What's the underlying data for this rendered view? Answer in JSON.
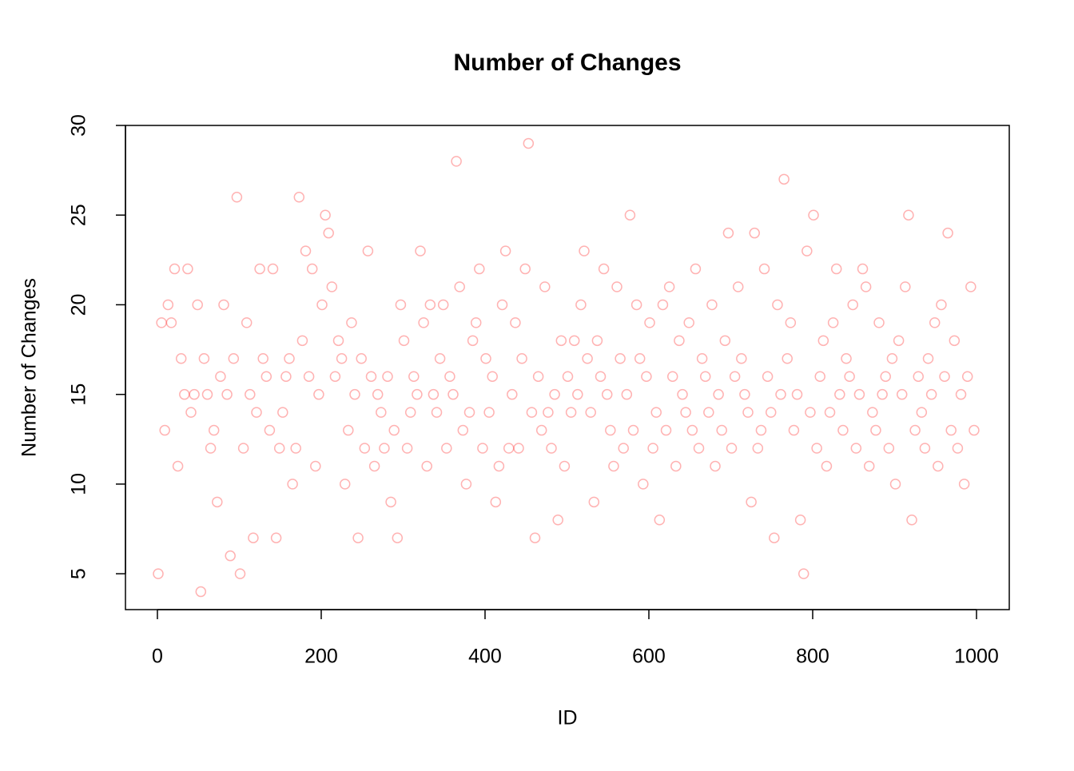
{
  "chart_data": {
    "type": "scatter",
    "title": "Number of Changes",
    "x_label": "ID",
    "y_label": "Number of Changes",
    "color": "rgba(255,0,0,0.3)",
    "xlim": [
      -39,
      1040
    ],
    "ylim": [
      3,
      30
    ],
    "xticks": [
      0,
      200,
      400,
      600,
      800,
      1000
    ],
    "yticks": [
      5,
      10,
      15,
      20,
      25,
      30
    ],
    "x": [
      1,
      5,
      9,
      13,
      17,
      21,
      25,
      29,
      33,
      37,
      41,
      45,
      49,
      53,
      57,
      61,
      65,
      69,
      73,
      77,
      81,
      85,
      89,
      93,
      97,
      101,
      105,
      109,
      113,
      117,
      121,
      125,
      129,
      133,
      137,
      141,
      145,
      149,
      153,
      157,
      161,
      165,
      169,
      173,
      177,
      181,
      185,
      189,
      193,
      197,
      201,
      205,
      209,
      213,
      217,
      221,
      225,
      229,
      233,
      237,
      241,
      245,
      249,
      253,
      257,
      261,
      265,
      269,
      273,
      277,
      281,
      285,
      289,
      293,
      297,
      301,
      305,
      309,
      313,
      317,
      321,
      325,
      329,
      333,
      337,
      341,
      345,
      349,
      353,
      357,
      361,
      365,
      369,
      373,
      377,
      381,
      385,
      389,
      393,
      397,
      401,
      405,
      409,
      413,
      417,
      421,
      425,
      429,
      433,
      437,
      441,
      445,
      449,
      453,
      457,
      461,
      465,
      469,
      473,
      477,
      481,
      485,
      489,
      493,
      497,
      501,
      505,
      509,
      513,
      517,
      521,
      525,
      529,
      533,
      537,
      541,
      545,
      549,
      553,
      557,
      561,
      565,
      569,
      573,
      577,
      581,
      585,
      589,
      593,
      597,
      601,
      605,
      609,
      613,
      617,
      621,
      625,
      629,
      633,
      637,
      641,
      645,
      649,
      653,
      657,
      661,
      665,
      669,
      673,
      677,
      681,
      685,
      689,
      693,
      697,
      701,
      705,
      709,
      713,
      717,
      721,
      725,
      729,
      733,
      737,
      741,
      745,
      749,
      753,
      757,
      761,
      765,
      769,
      773,
      777,
      781,
      785,
      789,
      793,
      797,
      801,
      805,
      809,
      813,
      817,
      821,
      825,
      829,
      833,
      837,
      841,
      845,
      849,
      853,
      857,
      861,
      865,
      869,
      873,
      877,
      881,
      885,
      889,
      893,
      897,
      901,
      905,
      909,
      913,
      917,
      921,
      925,
      929,
      933,
      937,
      941,
      945,
      949,
      953,
      957,
      961,
      965,
      969,
      973,
      977,
      981,
      985,
      989,
      993,
      997
    ],
    "values": [
      5,
      19,
      13,
      20,
      19,
      22,
      11,
      17,
      15,
      22,
      14,
      15,
      20,
      4,
      17,
      15,
      12,
      13,
      9,
      16,
      20,
      15,
      6,
      17,
      26,
      5,
      12,
      19,
      15,
      7,
      14,
      22,
      17,
      16,
      13,
      22,
      7,
      12,
      14,
      16,
      17,
      10,
      12,
      26,
      18,
      23,
      16,
      22,
      11,
      15,
      20,
      25,
      24,
      21,
      16,
      18,
      17,
      10,
      13,
      19,
      15,
      7,
      17,
      12,
      23,
      16,
      11,
      15,
      14,
      12,
      16,
      9,
      13,
      7,
      20,
      18,
      12,
      14,
      16,
      15,
      23,
      19,
      11,
      20,
      15,
      14,
      17,
      20,
      12,
      16,
      15,
      28,
      21,
      13,
      10,
      14,
      18,
      19,
      22,
      12,
      17,
      14,
      16,
      9,
      11,
      20,
      23,
      12,
      15,
      19,
      12,
      17,
      22,
      29,
      14,
      7,
      16,
      13,
      21,
      14,
      12,
      15,
      8,
      18,
      11,
      16,
      14,
      18,
      15,
      20,
      23,
      17,
      14,
      9,
      18,
      16,
      22,
      15,
      13,
      11,
      21,
      17,
      12,
      15,
      25,
      13,
      20,
      17,
      10,
      16,
      19,
      12,
      14,
      8,
      20,
      13,
      21,
      16,
      11,
      18,
      15,
      14,
      19,
      13,
      22,
      12,
      17,
      16,
      14,
      20,
      11,
      15,
      13,
      18,
      24,
      12,
      16,
      21,
      17,
      15,
      14,
      9,
      24,
      12,
      13,
      22,
      16,
      14,
      7,
      20,
      15,
      27,
      17,
      19,
      13,
      15,
      8,
      5,
      23,
      14,
      25,
      12,
      16,
      18,
      11,
      14,
      19,
      22,
      15,
      13,
      17,
      16,
      20,
      12,
      15,
      22,
      21,
      11,
      14,
      13,
      19,
      15,
      16,
      12,
      17,
      10,
      18,
      15,
      21,
      25,
      8,
      13,
      16,
      14,
      12,
      17,
      15,
      19,
      11,
      20,
      16,
      24,
      13,
      18,
      12,
      15,
      10,
      16,
      21,
      13
    ]
  }
}
